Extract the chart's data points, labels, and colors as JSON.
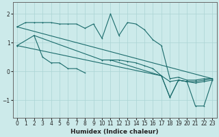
{
  "xlabel": "Humidex (Indice chaleur)",
  "ylabel": "",
  "background_color": "#cceaea",
  "line_color": "#1a6b6b",
  "grid_color": "#aad4d4",
  "xlim": [
    -0.5,
    23.5
  ],
  "ylim": [
    -1.6,
    2.4
  ],
  "yticks": [
    -1,
    0,
    1,
    2
  ],
  "xticks": [
    0,
    1,
    2,
    3,
    4,
    5,
    6,
    7,
    8,
    9,
    10,
    11,
    12,
    13,
    14,
    15,
    16,
    17,
    18,
    19,
    20,
    21,
    22,
    23
  ],
  "lines": [
    {
      "x": [
        0,
        1,
        2,
        3,
        4,
        5,
        6,
        7,
        8,
        9,
        10,
        11,
        12,
        13,
        14,
        15,
        16,
        17,
        18,
        19,
        20,
        21,
        22,
        23
      ],
      "y": [
        1.55,
        1.7,
        1.7,
        1.7,
        1.7,
        1.65,
        1.65,
        1.65,
        1.5,
        1.65,
        1.15,
        2.0,
        1.25,
        1.7,
        1.65,
        1.45,
        1.1,
        0.9,
        -0.25,
        -0.2,
        -0.3,
        -0.3,
        -0.25,
        -0.25
      ]
    },
    {
      "x": [
        0,
        1,
        2,
        3,
        4,
        5,
        6,
        7,
        8,
        9,
        10,
        11,
        12,
        13,
        14,
        15,
        16,
        17,
        18,
        19,
        20,
        21,
        22,
        23
      ],
      "y": [
        0.9,
        null,
        1.25,
        0.5,
        0.3,
        0.3,
        0.1,
        0.1,
        -0.05,
        null,
        0.4,
        0.4,
        0.4,
        0.35,
        0.3,
        0.2,
        0.1,
        -0.15,
        -0.35,
        -0.3,
        -0.35,
        -0.35,
        -0.3,
        -0.25
      ]
    },
    {
      "x": [
        0,
        2,
        10,
        11,
        17,
        18,
        19,
        20,
        21,
        22,
        23
      ],
      "y": [
        0.9,
        1.25,
        0.4,
        0.4,
        -0.15,
        -0.9,
        -0.3,
        -0.35,
        -0.4,
        -0.35,
        -0.3
      ]
    },
    {
      "x": [
        0,
        17,
        18,
        19,
        20,
        21,
        22,
        23
      ],
      "y": [
        0.9,
        -0.15,
        -0.9,
        -0.3,
        -0.35,
        -1.2,
        -1.2,
        -0.3
      ]
    },
    {
      "x": [
        0,
        23
      ],
      "y": [
        1.55,
        -0.25
      ]
    }
  ]
}
